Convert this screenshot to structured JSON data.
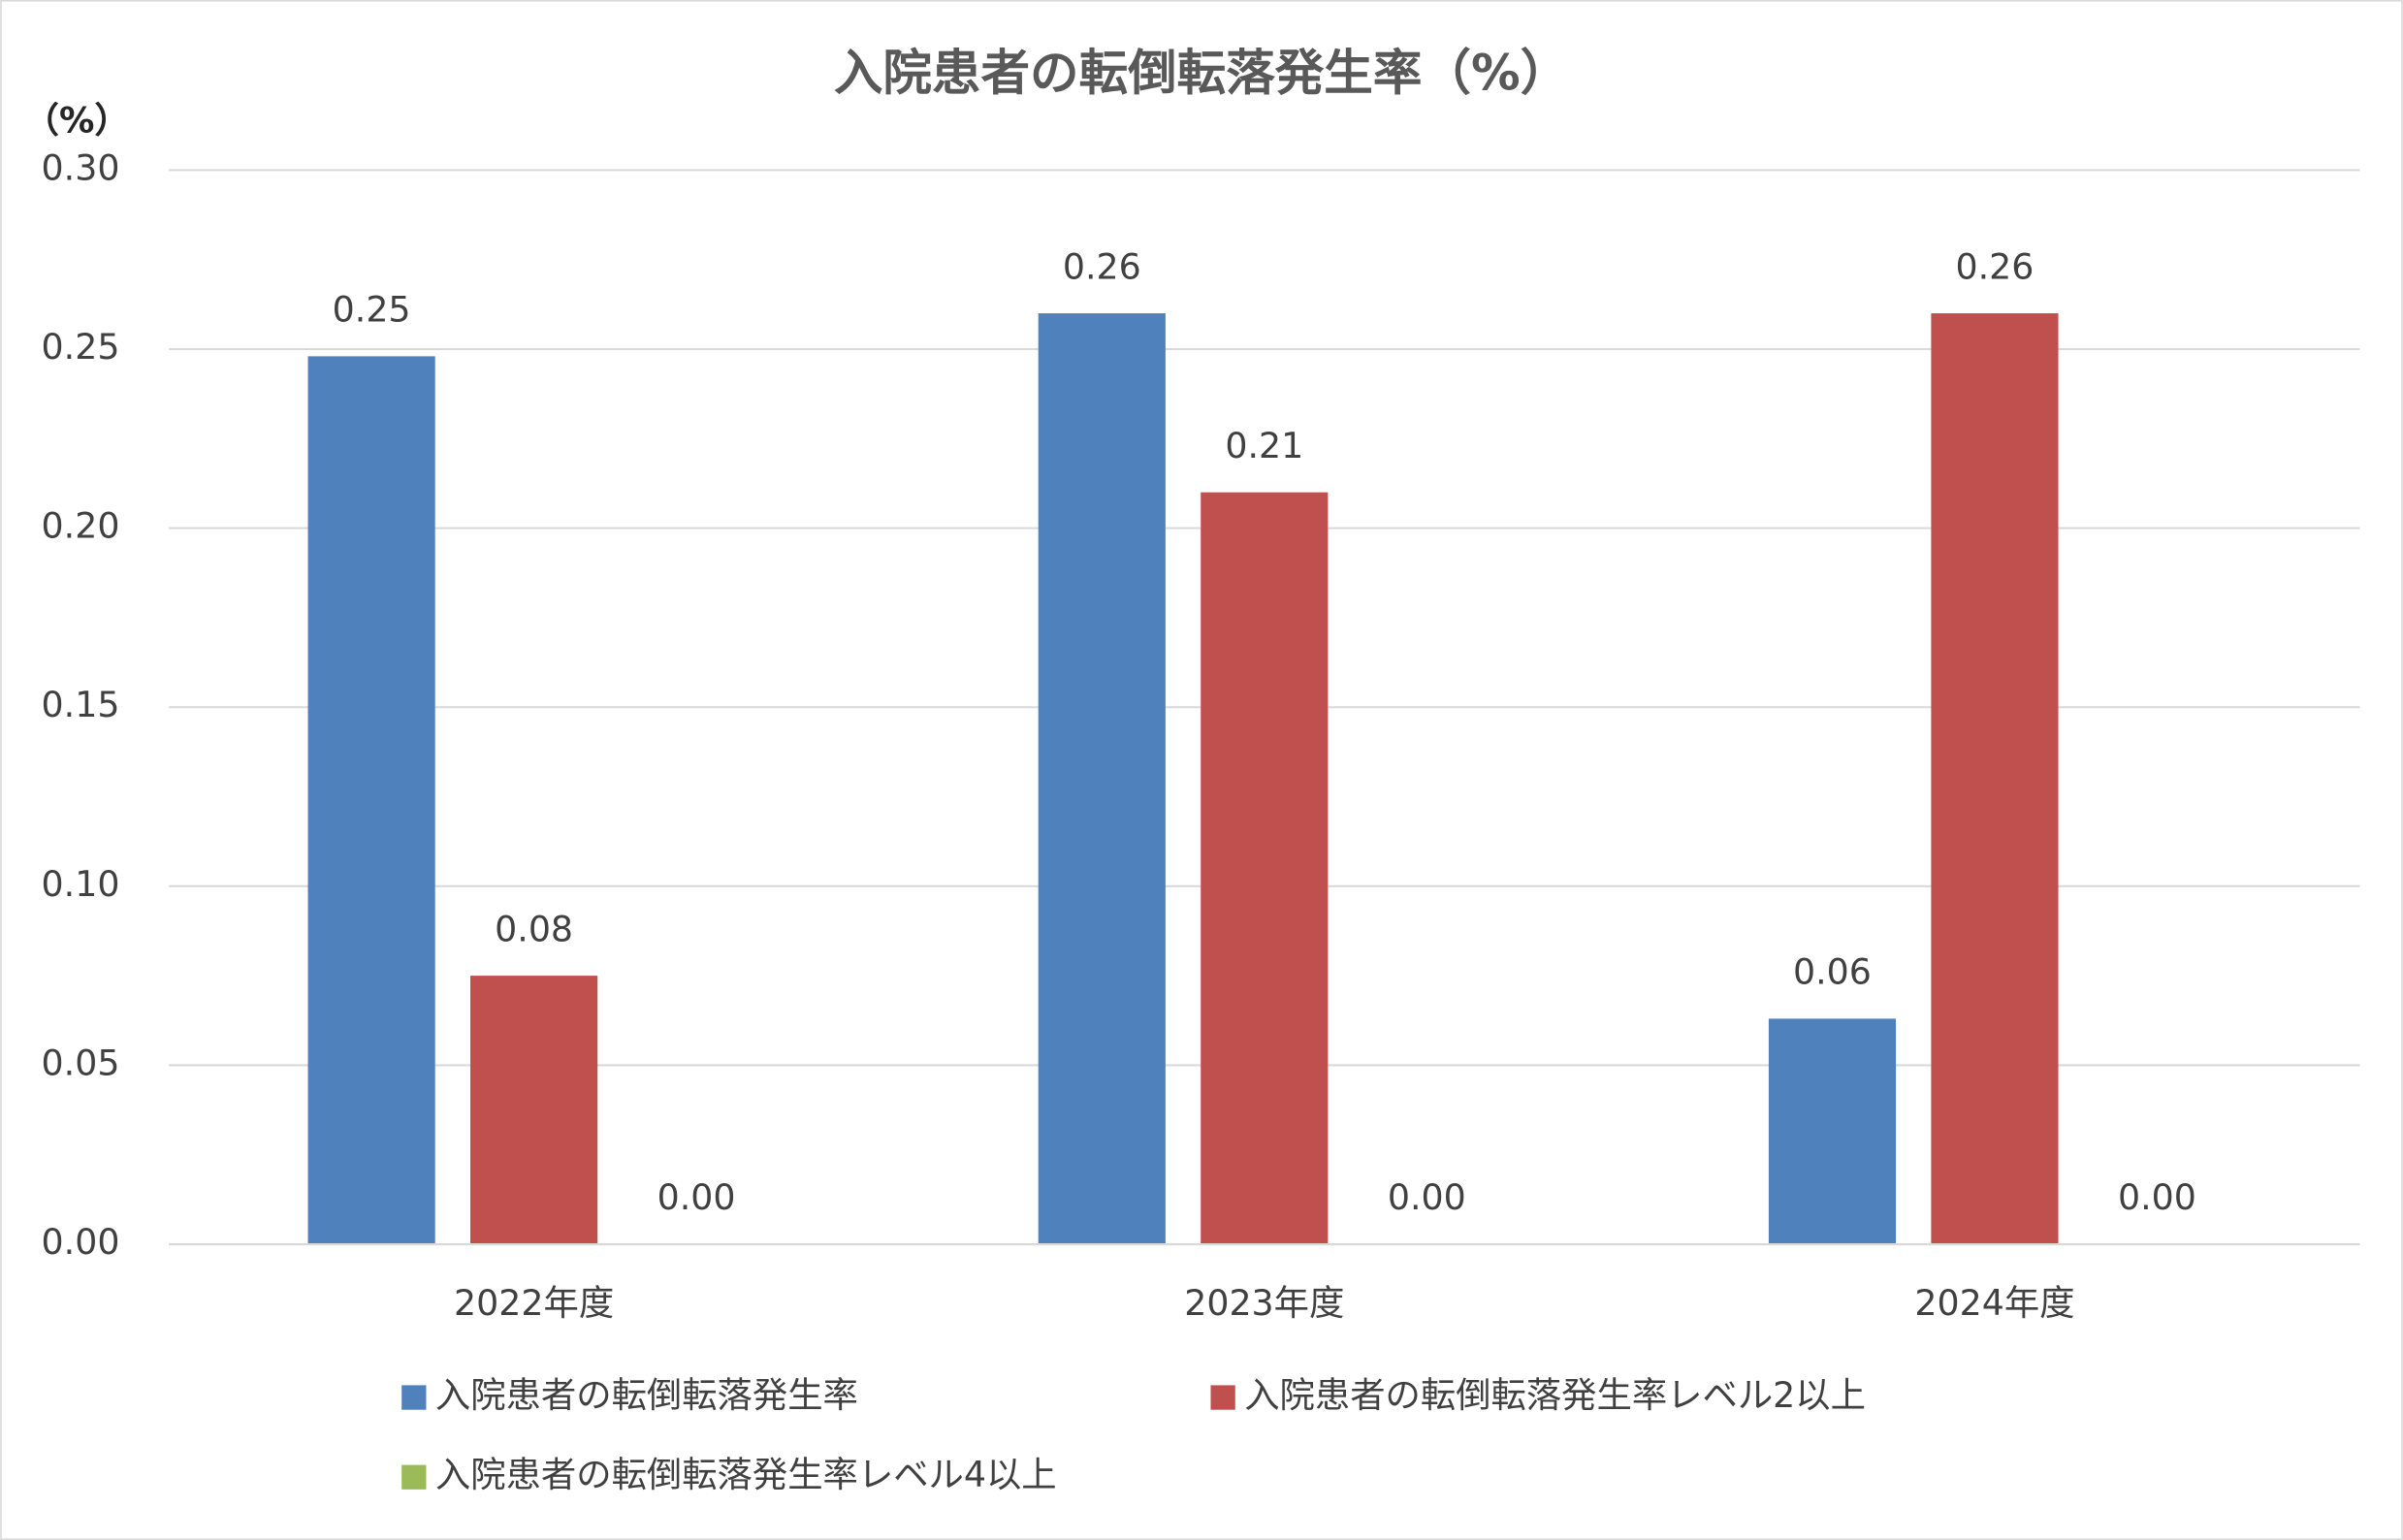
{
  "chart_data": {
    "type": "bar",
    "title": "入院患者の転倒転落発生率（%）",
    "y_label": "（%）",
    "categories": [
      "2022年度",
      "2023年度",
      "2024年度"
    ],
    "series": [
      {
        "name": "入院患者の転倒転落発生率",
        "color": "#4f81bd",
        "values": [
          0.248,
          0.26,
          0.063
        ],
        "value_labels": [
          "0.25",
          "0.26",
          "0.06"
        ]
      },
      {
        "name": "入院患者の転倒転落発生率レベル2以上",
        "color": "#c0504d",
        "values": [
          0.075,
          0.21,
          0.26
        ],
        "value_labels": [
          "0.08",
          "0.21",
          "0.26"
        ]
      },
      {
        "name": "入院患者の転倒転落発生率レベル4以上",
        "color": "#9bbb59",
        "values": [
          0,
          0,
          0
        ],
        "value_labels": [
          "0.00",
          "0.00",
          "0.00"
        ]
      }
    ],
    "ylim": [
      0,
      0.3
    ],
    "yticks": [
      {
        "value": 0,
        "label": "0.00"
      },
      {
        "value": 0.05,
        "label": "0.05"
      },
      {
        "value": 0.1,
        "label": "0.10"
      },
      {
        "value": 0.15,
        "label": "0.15"
      },
      {
        "value": 0.2,
        "label": "0.20"
      },
      {
        "value": 0.25,
        "label": "0.25"
      },
      {
        "value": 0.3,
        "label": "0.30"
      }
    ],
    "grid": true
  }
}
